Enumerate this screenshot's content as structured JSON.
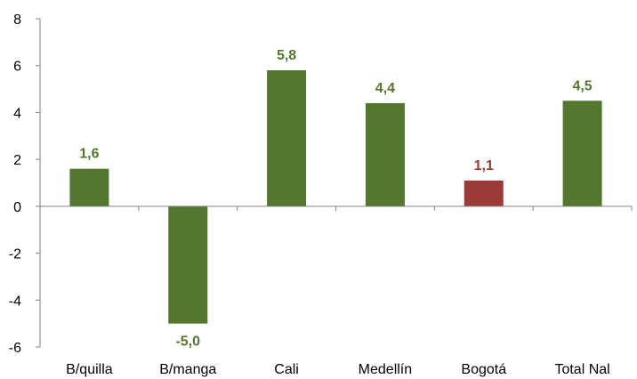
{
  "chart_data": {
    "type": "bar",
    "title": "",
    "xlabel": "",
    "ylabel": "",
    "categories": [
      "B/quilla",
      "B/manga",
      "Cali",
      "Medellín",
      "Bogotá",
      "Total Nal"
    ],
    "values": [
      1.6,
      -5.0,
      5.8,
      4.4,
      1.1,
      4.5
    ],
    "data_labels": [
      "1,6",
      "-5,0",
      "5,8",
      "4,4",
      "1,1",
      "4,5"
    ],
    "ylim": [
      -6,
      8
    ],
    "yticks": [
      -6,
      -4,
      -2,
      0,
      2,
      4,
      6,
      8
    ],
    "ytick_labels": [
      "-6",
      "-4",
      "-2",
      "0",
      "2",
      "4",
      "6",
      "8"
    ],
    "grid": false,
    "legend": "none",
    "highlight_category": "Bogotá",
    "colors": {
      "default_bar": "#53772E",
      "highlight_bar": "#9C3A37",
      "default_label": "#53772E",
      "highlight_label": "#9C3A37",
      "axis": "#808080"
    }
  }
}
